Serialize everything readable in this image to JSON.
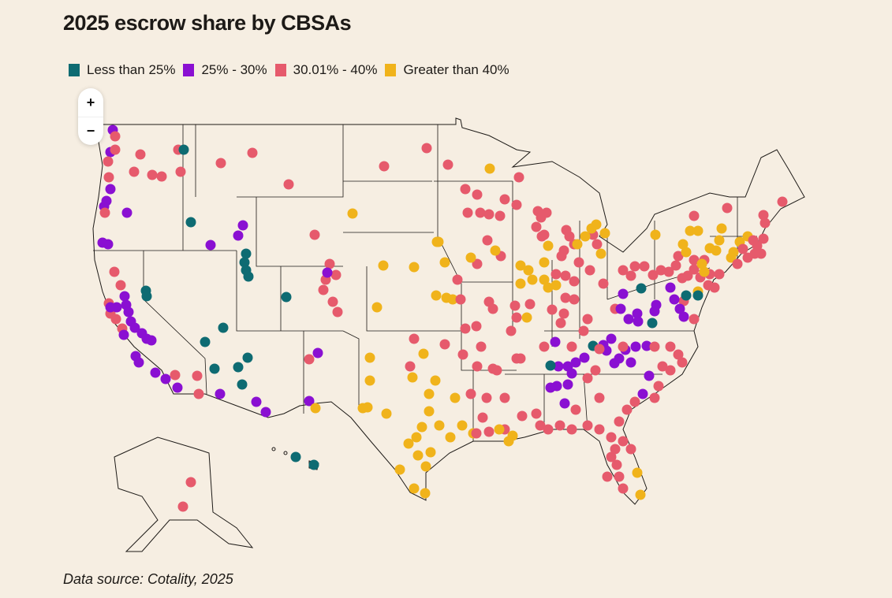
{
  "title": "2025 escrow share by CBSAs",
  "legend": [
    {
      "label": "Less than 25%",
      "color": "#0e6b72"
    },
    {
      "label": "25% - 30%",
      "color": "#8a10d2"
    },
    {
      "label": "30.01% - 40%",
      "color": "#e65a6c"
    },
    {
      "label": "Greater than 40%",
      "color": "#f0b31b"
    }
  ],
  "zoom_controls": {
    "zoom_in": "+",
    "zoom_out": "−"
  },
  "source": "Data source: Cotality, 2025",
  "map": {
    "background": "#f6eee2",
    "outline_color": "#1d1a17",
    "marker_type": "circle"
  }
}
